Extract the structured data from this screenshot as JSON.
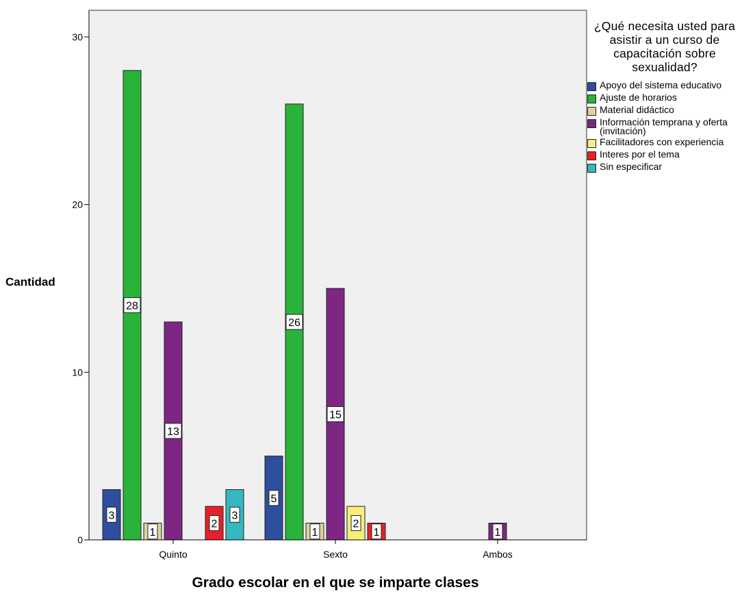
{
  "chart_data": {
    "type": "bar",
    "xlabel": "Grado escolar en el que se imparte clases",
    "ylabel": "Cantidad",
    "ylim": [
      0,
      32
    ],
    "yticks": [
      0,
      10,
      20,
      30
    ],
    "grid": false,
    "legend_position": "right",
    "legend_title": "¿Qué necesita usted para asistir a un curso de capacitación sobre sexualidad?",
    "categories": [
      "Quinto",
      "Sexto",
      "Ambos"
    ],
    "series": [
      {
        "name": "Apoyo del sistema educativo",
        "color": "#2e4e9e",
        "values": [
          3,
          5,
          null
        ]
      },
      {
        "name": "Ajuste de horarios",
        "color": "#29b33a",
        "values": [
          28,
          26,
          null
        ]
      },
      {
        "name": "Material didáctico",
        "color": "#ddd39e",
        "values": [
          1,
          1,
          null
        ]
      },
      {
        "name": "Información temprana y oferta (invitación)",
        "color": "#7d2684",
        "values": [
          13,
          15,
          1
        ]
      },
      {
        "name": "Facilitadores con experiencia",
        "color": "#f7ee7a",
        "values": [
          null,
          2,
          null
        ]
      },
      {
        "name": "Interes por el tema",
        "color": "#e8202a",
        "values": [
          2,
          1,
          null
        ]
      },
      {
        "name": "Sin especificar",
        "color": "#35b8c0",
        "values": [
          3,
          null,
          null
        ]
      }
    ]
  }
}
